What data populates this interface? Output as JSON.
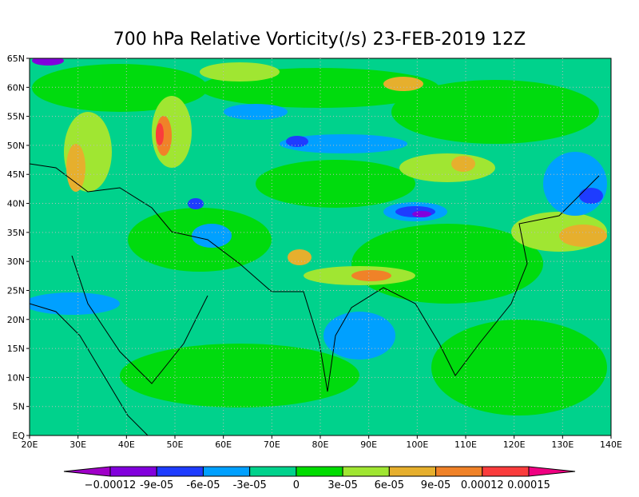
{
  "title": "700 hPa Relative Vorticity(/s) 23-FEB-2019 12Z",
  "map": {
    "lon_labels": [
      "20E",
      "30E",
      "40E",
      "50E",
      "60E",
      "70E",
      "80E",
      "90E",
      "100E",
      "110E",
      "120E",
      "130E",
      "140E"
    ],
    "lat_labels": [
      "EQ",
      "5N",
      "10N",
      "15N",
      "20N",
      "25N",
      "30N",
      "35N",
      "40N",
      "45N",
      "50N",
      "55N",
      "60N",
      "65N"
    ]
  },
  "colorbar": {
    "labels": [
      "−0.00012",
      "-9e-05",
      "-6e-05",
      "-3e-05",
      "0",
      "3e-05",
      "6e-05",
      "9e-05",
      "0.00012",
      "0.00015"
    ],
    "colors": [
      "#a000c8",
      "#8200dc",
      "#1e3cff",
      "#00a0ff",
      "#00d28c",
      "#00dc00",
      "#a0e632",
      "#e6af2d",
      "#f08228",
      "#fa3c3c",
      "#f00082"
    ]
  }
}
